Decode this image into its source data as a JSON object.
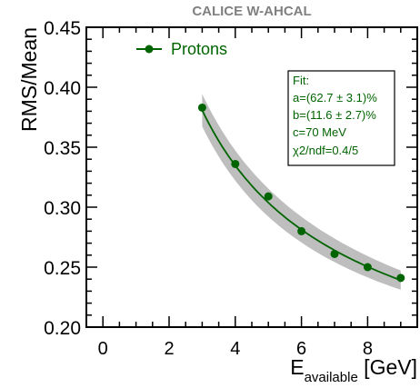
{
  "chart_data": {
    "type": "scatter",
    "title": "CALICE W-AHCAL",
    "xlabel_main": "E",
    "xlabel_sub": "available",
    "xlabel_unit": " [GeV]",
    "ylabel": "RMS/Mean",
    "xlim": [
      -0.5,
      9.5
    ],
    "ylim": [
      0.2,
      0.45
    ],
    "xticks": [
      0,
      2,
      4,
      6,
      8
    ],
    "yticks": [
      0.2,
      0.25,
      0.3,
      0.35,
      0.4,
      0.45
    ],
    "ytick_labels": [
      "0.20",
      "0.25",
      "0.30",
      "0.35",
      "0.40",
      "0.45"
    ],
    "grid": false,
    "legend_position": "top-left",
    "series": [
      {
        "name": "Protons",
        "color": "#006400",
        "x": [
          3,
          4,
          5,
          6,
          7,
          8,
          9
        ],
        "y": [
          0.383,
          0.336,
          0.309,
          0.28,
          0.261,
          0.25,
          0.241
        ]
      }
    ],
    "fit": {
      "color": "#006400",
      "band_color": "#bebebe",
      "a": 0.627,
      "b": 0.116,
      "c": 0.07,
      "x_range": [
        3,
        9
      ],
      "band_halfwidth": [
        0.0135,
        0.008
      ],
      "lines": [
        "Fit:",
        "a=(62.7 ± 3.1)%",
        "b=(11.6 ± 2.7)%",
        "c=70 MeV",
        "χ2/ndf=0.4/5"
      ]
    }
  }
}
